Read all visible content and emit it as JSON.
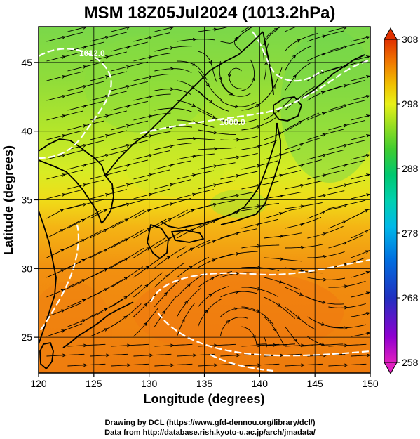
{
  "title": "MSM 18Z05Jul2024 (1013.2hPa)",
  "x_axis": {
    "label": "Longitude (degrees)",
    "range": [
      120,
      150
    ],
    "ticks": [
      "120",
      "125",
      "130",
      "135",
      "140",
      "145",
      "150"
    ],
    "tick_values": [
      120,
      125,
      130,
      135,
      140,
      145,
      150
    ]
  },
  "y_axis": {
    "label": "Latitude  (degrees)",
    "range": [
      22.4,
      47.6
    ],
    "ticks": [
      "25",
      "30",
      "35",
      "40",
      "45"
    ],
    "tick_values": [
      25,
      30,
      35,
      40,
      45
    ]
  },
  "colorbar": {
    "min": 258,
    "max": 308,
    "ticks": [
      "308",
      "298",
      "288",
      "278",
      "268",
      "258"
    ],
    "tick_values": [
      308,
      298,
      288,
      278,
      268,
      258
    ],
    "colors": [
      "#e020c0",
      "#9000d0",
      "#2030c0",
      "#0060e0",
      "#00a0f0",
      "#00d0d0",
      "#00c878",
      "#20c830",
      "#80e020",
      "#d8f020",
      "#f0f000",
      "#f0b000",
      "#f07000",
      "#e03000"
    ]
  },
  "contour_labels": [
    "1012.0",
    "1000.0"
  ],
  "credits": {
    "line1": "Drawing by DCL (https://www.gfd-dennou.org/library/dcl/)",
    "line2": "Data from http://database.rish.kyoto-u.ac.jp/arch/jmadata/"
  }
}
